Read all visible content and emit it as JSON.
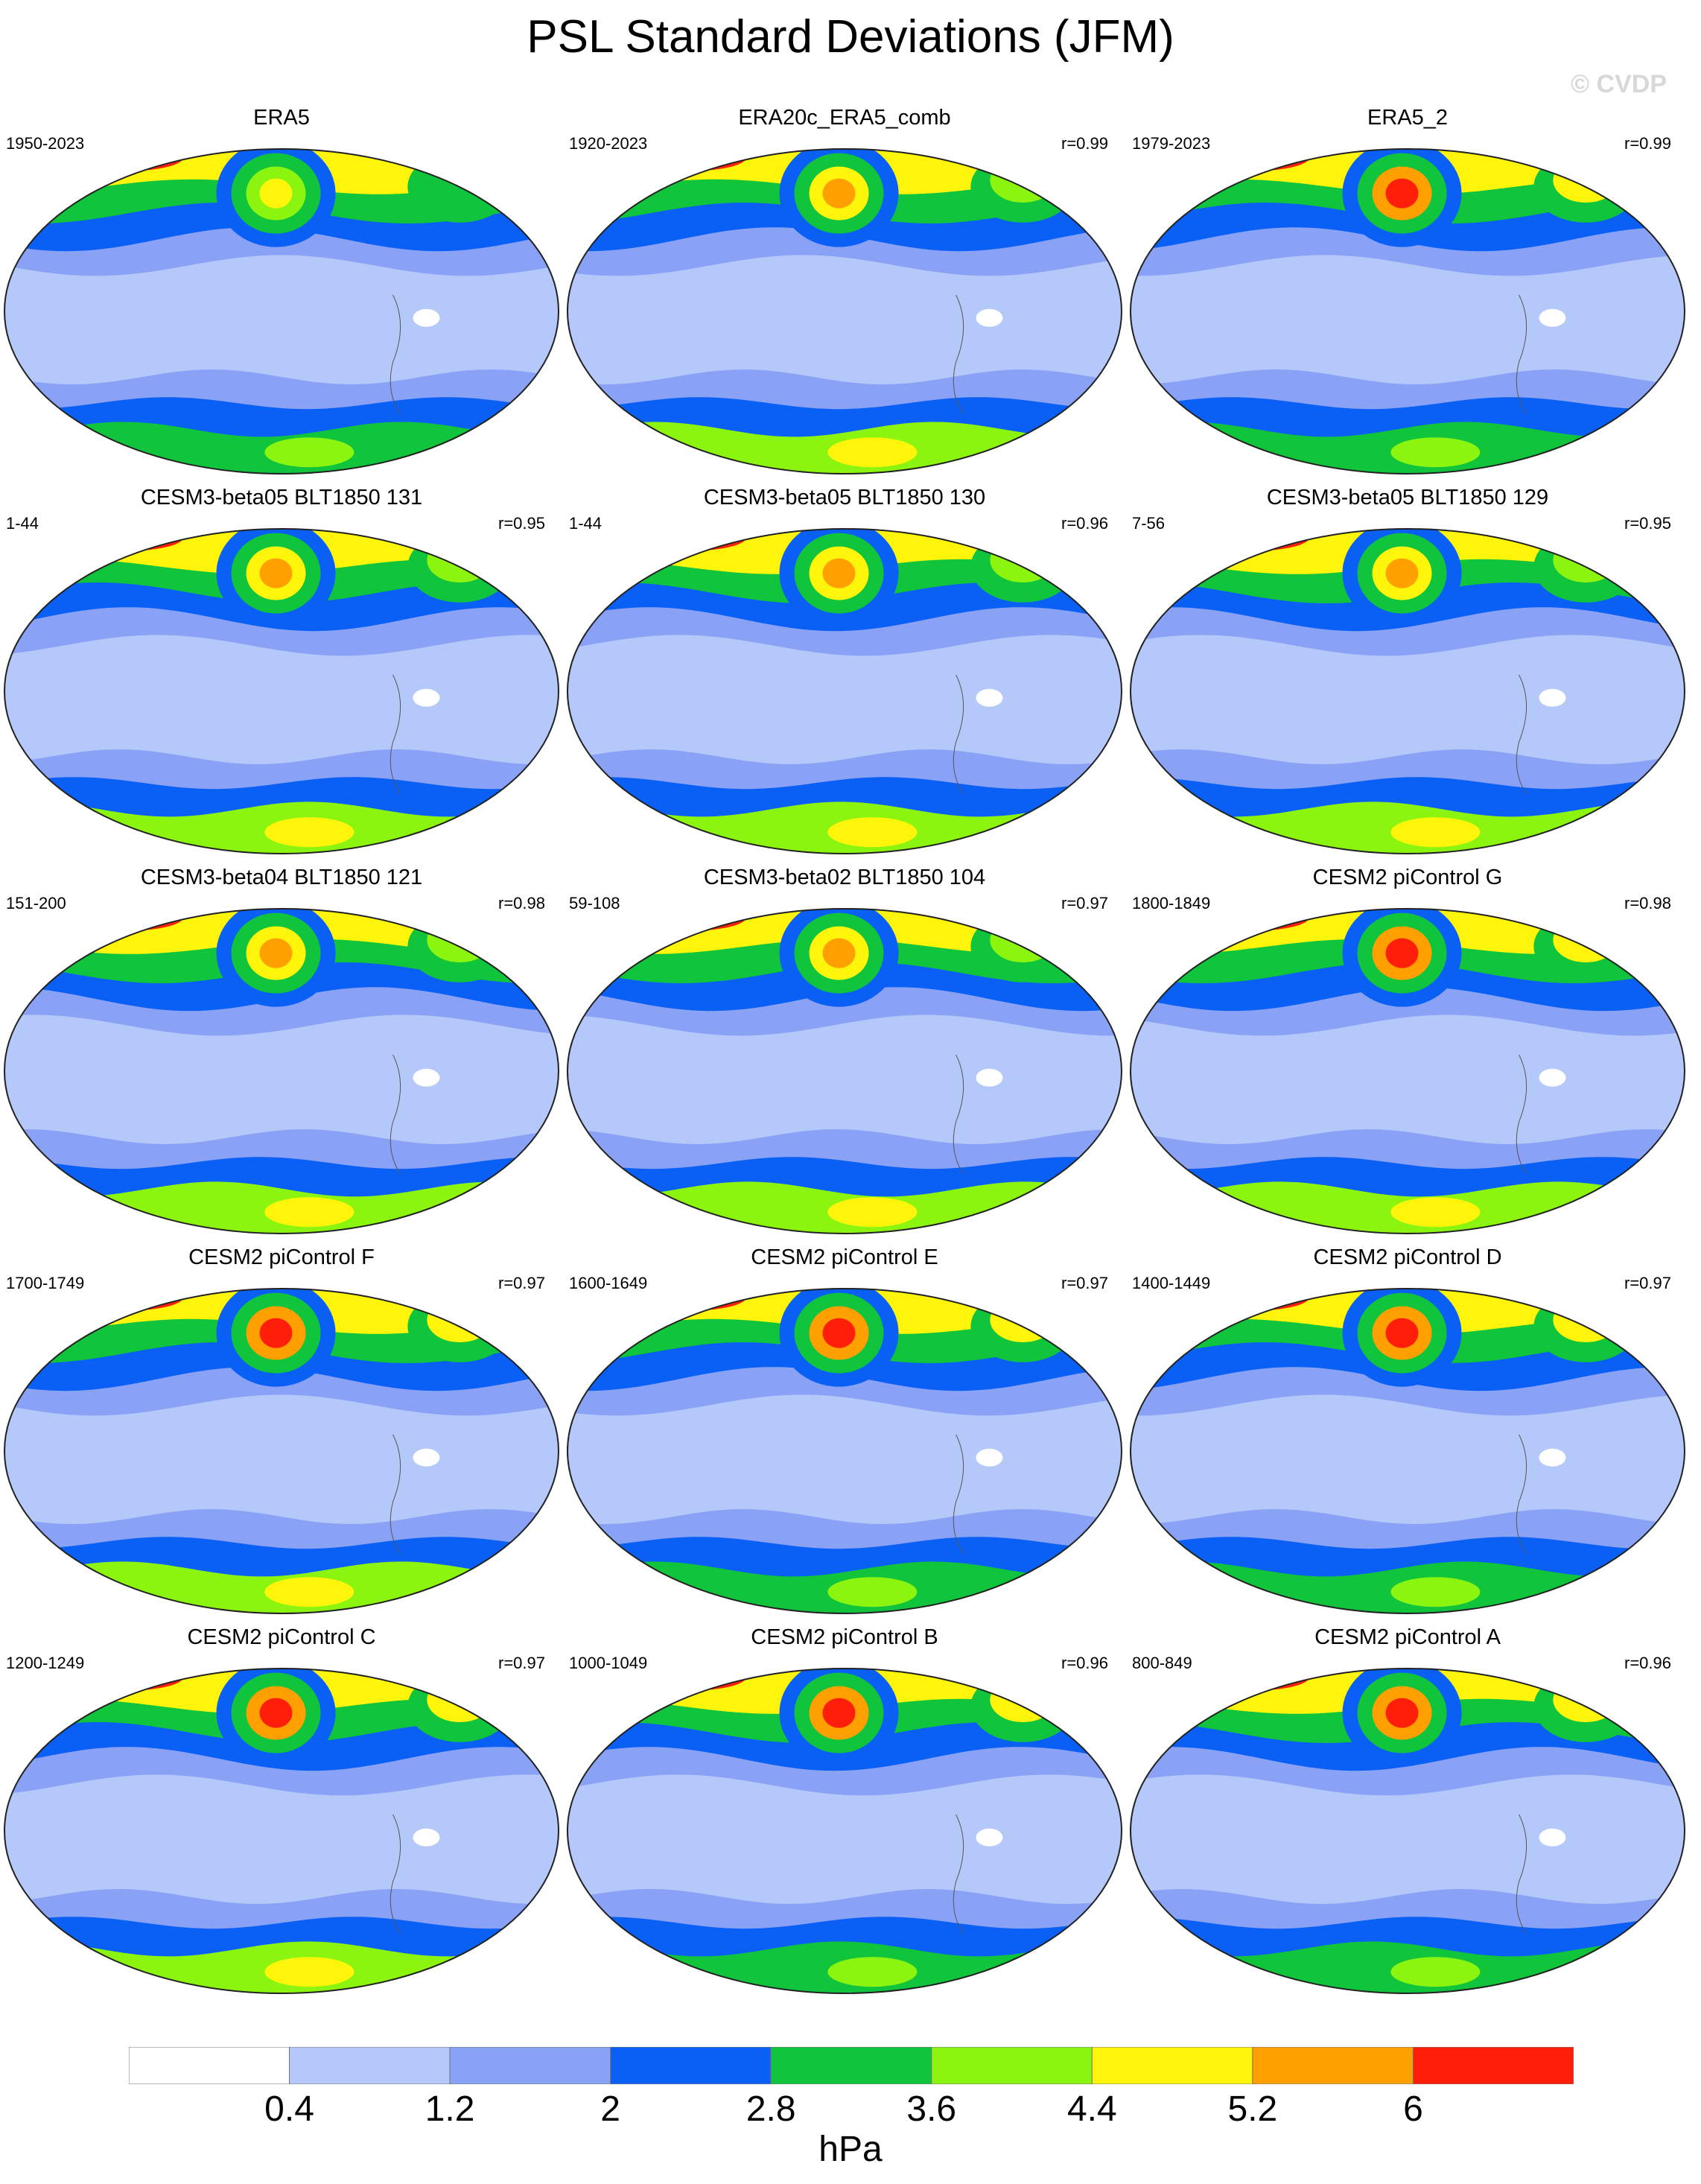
{
  "title": "PSL Standard Deviations (JFM)",
  "watermark": "© CVDP",
  "colorbar": {
    "colors": [
      "#ffffff",
      "#b4c8fa",
      "#8aa2f5",
      "#0a5ff5",
      "#10c43c",
      "#8cf510",
      "#fff50a",
      "#ffa000",
      "#ff1e0a"
    ],
    "ticks": [
      "0.4",
      "1.2",
      "2",
      "2.8",
      "3.6",
      "4.4",
      "5.2",
      "6"
    ],
    "units": "hPa"
  },
  "panels": [
    {
      "title": "ERA5",
      "years": "1950-2023",
      "corr": "",
      "level_nh_lowlat": 5,
      "level_nh_midlat": 6,
      "level_so": 5
    },
    {
      "title": "ERA20c_ERA5_comb",
      "years": "1920-2023",
      "corr": "r=0.99",
      "level_nh_lowlat": 5,
      "level_nh_midlat": 7,
      "level_so": 6
    },
    {
      "title": "ERA5_2",
      "years": "1979-2023",
      "corr": "r=0.99",
      "level_nh_lowlat": 5,
      "level_nh_midlat": 8,
      "level_so": 5
    },
    {
      "title": "CESM3-beta05 BLT1850 131",
      "years": "1-44",
      "corr": "r=0.95",
      "level_nh_lowlat": 5,
      "level_nh_midlat": 7,
      "level_so": 6
    },
    {
      "title": "CESM3-beta05 BLT1850 130",
      "years": "1-44",
      "corr": "r=0.96",
      "level_nh_lowlat": 5,
      "level_nh_midlat": 7,
      "level_so": 6
    },
    {
      "title": "CESM3-beta05 BLT1850 129",
      "years": "7-56",
      "corr": "r=0.95",
      "level_nh_lowlat": 5,
      "level_nh_midlat": 7,
      "level_so": 6
    },
    {
      "title": "CESM3-beta04 BLT1850 121",
      "years": "151-200",
      "corr": "r=0.98",
      "level_nh_lowlat": 5,
      "level_nh_midlat": 7,
      "level_so": 6
    },
    {
      "title": "CESM3-beta02 BLT1850 104",
      "years": "59-108",
      "corr": "r=0.97",
      "level_nh_lowlat": 5,
      "level_nh_midlat": 7,
      "level_so": 6
    },
    {
      "title": "CESM2 piControl G",
      "years": "1800-1849",
      "corr": "r=0.98",
      "level_nh_lowlat": 5,
      "level_nh_midlat": 8,
      "level_so": 6
    },
    {
      "title": "CESM2 piControl F",
      "years": "1700-1749",
      "corr": "r=0.97",
      "level_nh_lowlat": 5,
      "level_nh_midlat": 8,
      "level_so": 6
    },
    {
      "title": "CESM2 piControl E",
      "years": "1600-1649",
      "corr": "r=0.97",
      "level_nh_lowlat": 5,
      "level_nh_midlat": 8,
      "level_so": 5
    },
    {
      "title": "CESM2 piControl D",
      "years": "1400-1449",
      "corr": "r=0.97",
      "level_nh_lowlat": 5,
      "level_nh_midlat": 8,
      "level_so": 5
    },
    {
      "title": "CESM2 piControl C",
      "years": "1200-1249",
      "corr": "r=0.97",
      "level_nh_lowlat": 5,
      "level_nh_midlat": 8,
      "level_so": 6
    },
    {
      "title": "CESM2 piControl B",
      "years": "1000-1049",
      "corr": "r=0.96",
      "level_nh_lowlat": 5,
      "level_nh_midlat": 8,
      "level_so": 5
    },
    {
      "title": "CESM2 piControl A",
      "years": "800-849",
      "corr": "r=0.96",
      "level_nh_lowlat": 5,
      "level_nh_midlat": 8,
      "level_so": 5
    }
  ]
}
